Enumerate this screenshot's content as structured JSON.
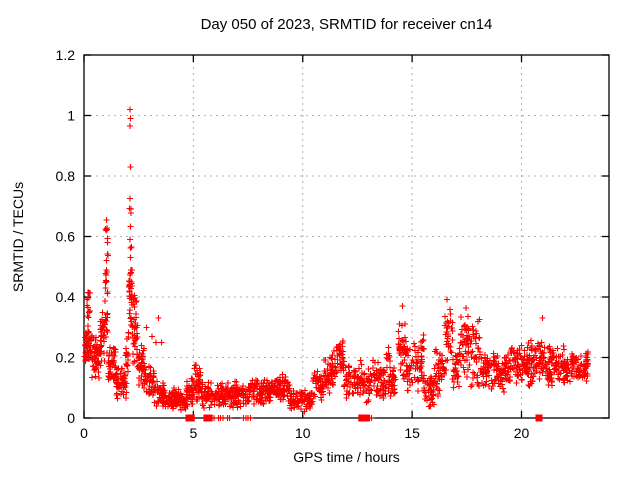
{
  "page": {
    "background": "#ffffff"
  },
  "chart_data": {
    "type": "scatter",
    "title": "Day 050 of 2023, SRMTID for receiver cn14",
    "xlabel": "GPS time / hours",
    "ylabel": "SRMTID / TECUs",
    "xlim": [
      0,
      24
    ],
    "ylim": [
      0,
      1.2
    ],
    "xticks": [
      0,
      5,
      10,
      15,
      20
    ],
    "xtick_labels": [
      "0",
      "5",
      "10",
      "15",
      "20"
    ],
    "yticks": [
      0,
      0.2,
      0.4,
      0.6,
      0.8,
      1,
      1.2
    ],
    "ytick_labels": [
      "0",
      "0.2",
      "0.4",
      "0.6",
      "0.8",
      "1",
      "1.2"
    ],
    "grid": true,
    "legend": null,
    "marker": "plus",
    "marker_size": 6,
    "colors": {
      "marker": "#ff0000",
      "grid": "#b0b0b0",
      "axis": "#000000",
      "background": "#ffffff"
    },
    "series_name": "SRMTID",
    "point_clusters_x0_x1_y0_y1_n": [
      [
        0.02,
        0.3,
        0.16,
        0.32,
        45
      ],
      [
        0.05,
        0.3,
        0.3,
        0.42,
        10
      ],
      [
        0.1,
        0.28,
        0.38,
        0.46,
        4
      ],
      [
        0.3,
        0.75,
        0.12,
        0.3,
        60
      ],
      [
        0.75,
        0.95,
        0.15,
        0.38,
        30
      ],
      [
        0.95,
        1.1,
        0.2,
        0.56,
        25
      ],
      [
        0.97,
        1.08,
        0.56,
        0.66,
        5
      ],
      [
        1.1,
        1.45,
        0.1,
        0.24,
        45
      ],
      [
        1.45,
        1.95,
        0.06,
        0.17,
        55
      ],
      [
        1.9,
        2.05,
        0.13,
        0.3,
        20
      ],
      [
        2.05,
        2.2,
        0.25,
        0.62,
        40
      ],
      [
        2.07,
        2.17,
        0.6,
        0.78,
        4
      ],
      [
        2.2,
        2.45,
        0.14,
        0.42,
        35
      ],
      [
        2.45,
        2.75,
        0.08,
        0.26,
        35
      ],
      [
        2.75,
        3.2,
        0.05,
        0.18,
        45
      ],
      [
        3.2,
        3.7,
        0.03,
        0.13,
        45
      ],
      [
        3.7,
        4.65,
        0.02,
        0.1,
        85
      ],
      [
        4.65,
        5.05,
        0.03,
        0.15,
        40
      ],
      [
        5.05,
        5.35,
        0.05,
        0.19,
        35
      ],
      [
        5.35,
        6.5,
        0.03,
        0.12,
        100
      ],
      [
        6.5,
        7.55,
        0.03,
        0.13,
        95
      ],
      [
        7.55,
        8.6,
        0.04,
        0.14,
        95
      ],
      [
        8.6,
        9.4,
        0.04,
        0.15,
        75
      ],
      [
        9.4,
        10.45,
        0.02,
        0.1,
        90
      ],
      [
        10.45,
        10.95,
        0.05,
        0.17,
        45
      ],
      [
        10.95,
        11.55,
        0.07,
        0.23,
        55
      ],
      [
        11.55,
        11.85,
        0.1,
        0.3,
        30
      ],
      [
        11.85,
        12.7,
        0.05,
        0.2,
        70
      ],
      [
        12.7,
        13.15,
        0.04,
        0.17,
        35
      ],
      [
        13.15,
        14.25,
        0.05,
        0.2,
        95
      ],
      [
        13.8,
        14.0,
        0.17,
        0.25,
        8
      ],
      [
        14.35,
        14.75,
        0.1,
        0.35,
        40
      ],
      [
        14.75,
        15.55,
        0.07,
        0.26,
        65
      ],
      [
        15.4,
        15.55,
        0.2,
        0.31,
        6
      ],
      [
        15.55,
        16.0,
        0.03,
        0.16,
        40
      ],
      [
        16.0,
        16.5,
        0.07,
        0.25,
        45
      ],
      [
        16.5,
        16.85,
        0.12,
        0.42,
        35
      ],
      [
        16.85,
        17.2,
        0.09,
        0.25,
        30
      ],
      [
        17.2,
        17.6,
        0.1,
        0.42,
        45
      ],
      [
        17.6,
        18.1,
        0.08,
        0.35,
        40
      ],
      [
        18.1,
        19.5,
        0.08,
        0.23,
        120
      ],
      [
        19.5,
        20.3,
        0.09,
        0.26,
        70
      ],
      [
        20.3,
        20.8,
        0.08,
        0.27,
        45
      ],
      [
        20.8,
        21.1,
        0.1,
        0.3,
        28
      ],
      [
        21.1,
        22.3,
        0.09,
        0.25,
        110
      ],
      [
        22.3,
        23.05,
        0.1,
        0.23,
        65
      ]
    ],
    "outlier_points": [
      [
        2.1,
        1.02
      ],
      [
        2.12,
        0.99
      ],
      [
        2.1,
        0.965
      ],
      [
        2.13,
        0.83
      ],
      [
        2.11,
        0.725
      ],
      [
        1.02,
        0.655
      ],
      [
        1.0,
        0.62
      ],
      [
        2.85,
        0.3
      ],
      [
        3.1,
        0.27
      ],
      [
        3.3,
        0.25
      ],
      [
        3.4,
        0.33
      ],
      [
        3.55,
        0.25
      ],
      [
        14.55,
        0.37
      ],
      [
        20.95,
        0.33
      ]
    ],
    "zero_value_square_markers_hours": [
      4.8,
      4.9,
      5.62,
      5.72,
      12.7,
      12.8,
      12.9,
      20.8
    ],
    "zero_value_plus_markers_hours": [
      5.95,
      6.15,
      6.25,
      6.35,
      6.55,
      6.65,
      7.3,
      7.4,
      7.5,
      7.6,
      13.05,
      13.15
    ]
  }
}
